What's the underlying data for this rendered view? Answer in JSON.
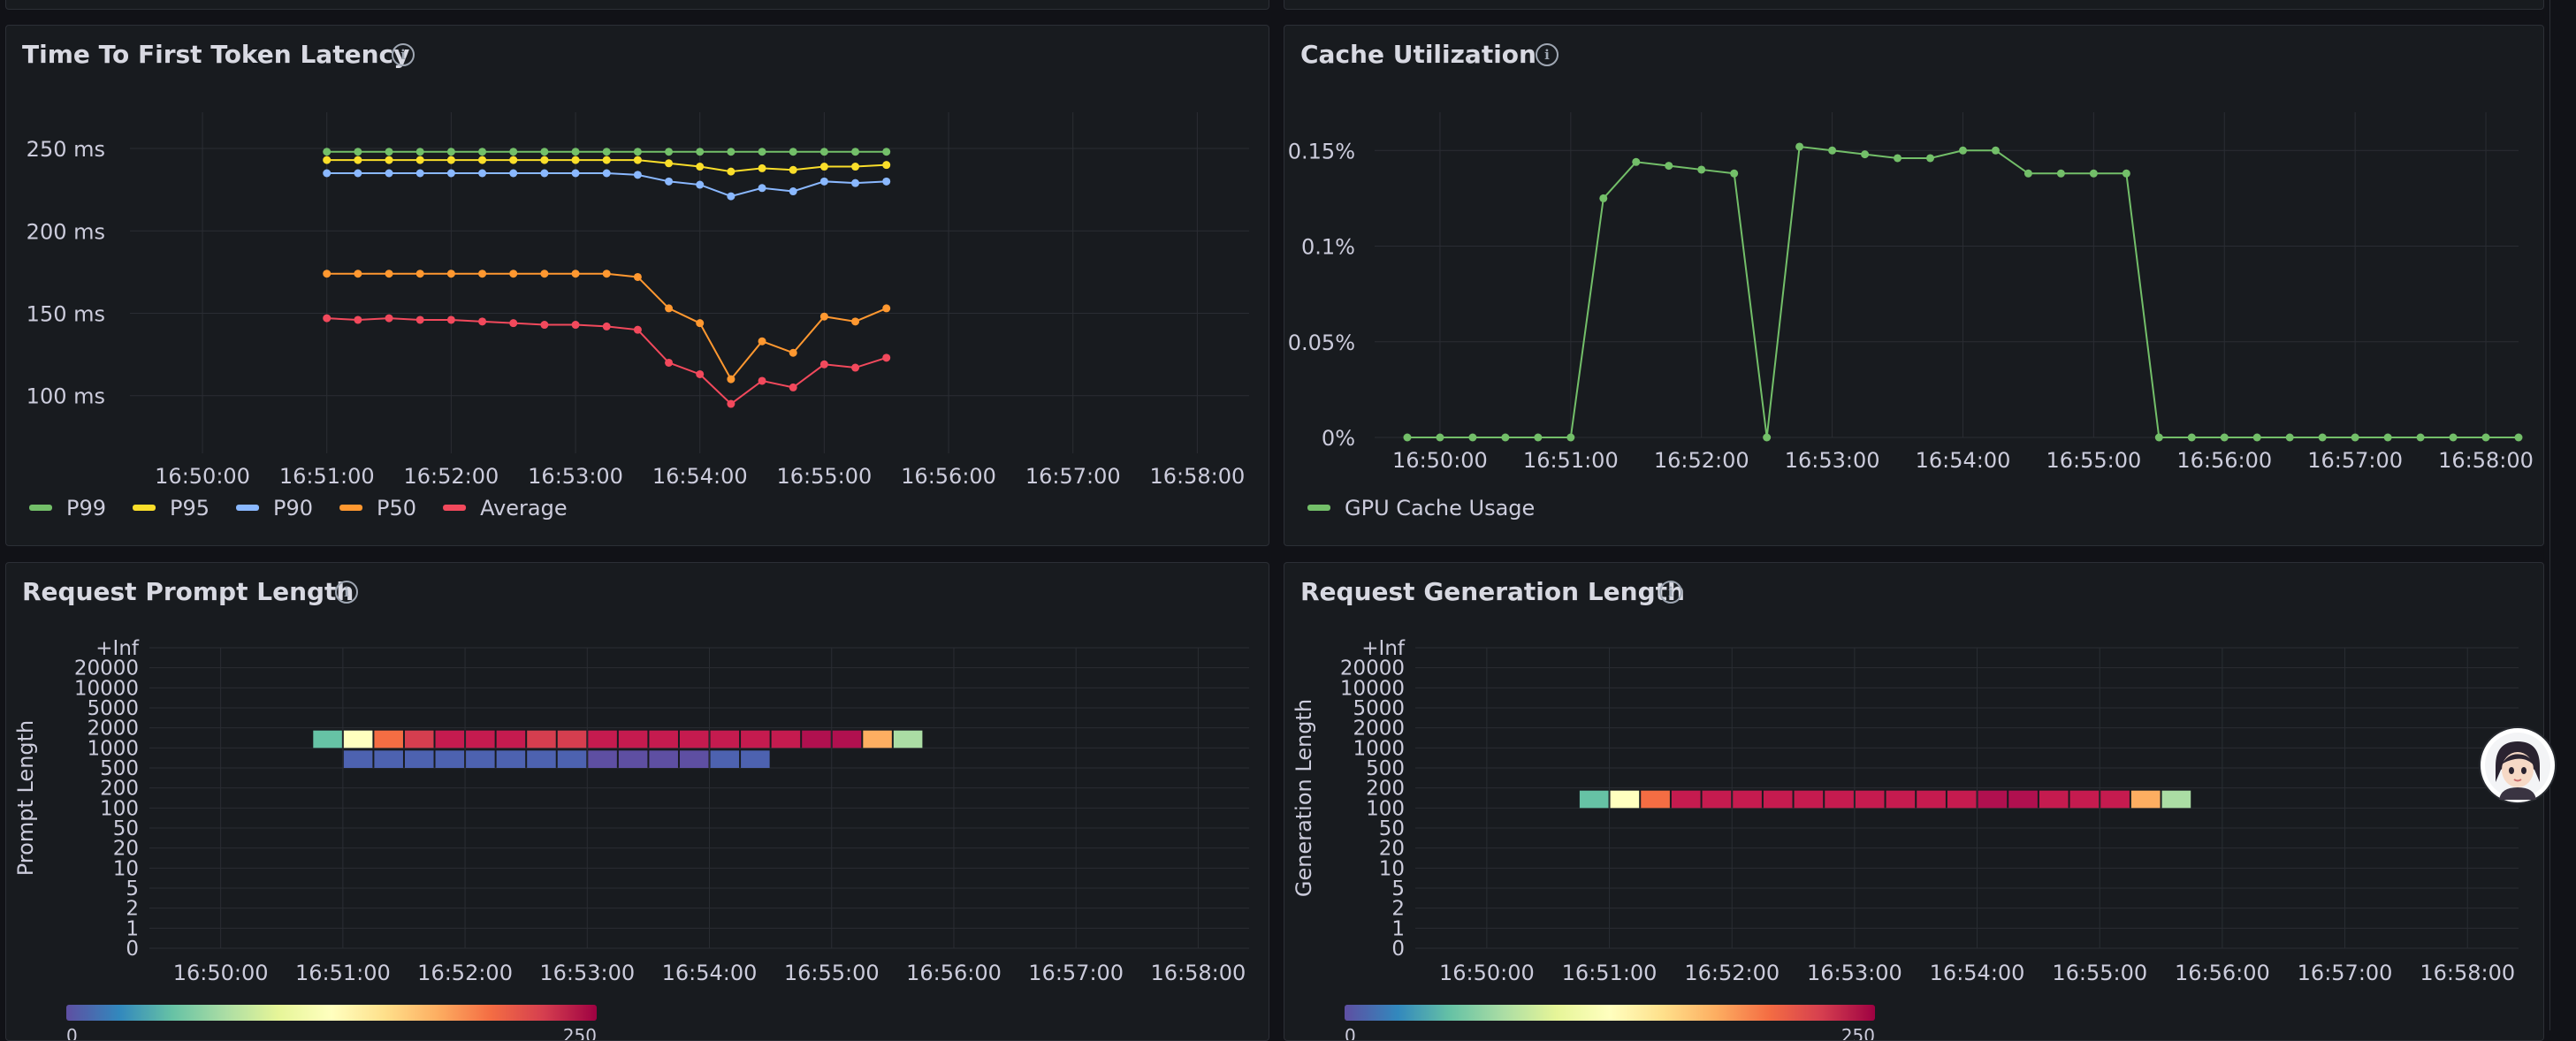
{
  "panels": {
    "ttft": {
      "title": "Time To First Token Latency"
    },
    "cache": {
      "title": "Cache Utilization"
    },
    "prompt": {
      "title": "Request Prompt Length"
    },
    "generation": {
      "title": "Request Generation Length"
    }
  },
  "time_ticks": [
    "16:50:00",
    "16:51:00",
    "16:52:00",
    "16:53:00",
    "16:54:00",
    "16:55:00",
    "16:56:00",
    "16:57:00",
    "16:58:00"
  ],
  "chart_data": [
    {
      "id": "ttft",
      "type": "line",
      "title": "Time To First Token Latency",
      "ylim": [
        65,
        272
      ],
      "y_ticks": [
        {
          "v": 250,
          "label": "250 ms"
        },
        {
          "v": 200,
          "label": "200 ms"
        },
        {
          "v": 150,
          "label": "150 ms"
        },
        {
          "v": 100,
          "label": "100 ms"
        }
      ],
      "xlim": [
        "16:49:25",
        "16:58:25"
      ],
      "x": [
        "16:51:00",
        "16:51:15",
        "16:51:30",
        "16:51:45",
        "16:52:00",
        "16:52:15",
        "16:52:30",
        "16:52:45",
        "16:53:00",
        "16:53:15",
        "16:53:30",
        "16:53:45",
        "16:54:00",
        "16:54:15",
        "16:54:30",
        "16:54:45",
        "16:55:00",
        "16:55:15",
        "16:55:30"
      ],
      "legend": "bottom-left",
      "series": [
        {
          "name": "P99",
          "color": "#73bf69",
          "values": [
            248,
            248,
            248,
            248,
            248,
            248,
            248,
            248,
            248,
            248,
            248,
            248,
            248,
            248,
            248,
            248,
            248,
            248,
            248
          ]
        },
        {
          "name": "P95",
          "color": "#fade2a",
          "values": [
            243,
            243,
            243,
            243,
            243,
            243,
            243,
            243,
            243,
            243,
            243,
            241,
            239,
            236,
            238,
            237,
            239,
            239,
            240
          ]
        },
        {
          "name": "P90",
          "color": "#8ab8ff",
          "values": [
            235,
            235,
            235,
            235,
            235,
            235,
            235,
            235,
            235,
            235,
            234,
            230,
            228,
            221,
            226,
            224,
            230,
            229,
            230
          ]
        },
        {
          "name": "P50",
          "color": "#ff9830",
          "values": [
            174,
            174,
            174,
            174,
            174,
            174,
            174,
            174,
            174,
            174,
            172,
            153,
            144,
            110,
            133,
            126,
            148,
            145,
            153
          ]
        },
        {
          "name": "Average",
          "color": "#f2495c",
          "values": [
            147,
            146,
            147,
            146,
            146,
            145,
            144,
            143,
            143,
            142,
            140,
            120,
            113,
            95,
            109,
            105,
            119,
            117,
            123
          ]
        }
      ]
    },
    {
      "id": "cache",
      "type": "line",
      "title": "Cache Utilization",
      "ylim": [
        0,
        0.0017
      ],
      "y_ticks": [
        {
          "v": 0.0015,
          "label": "0.15%"
        },
        {
          "v": 0.001,
          "label": "0.1%"
        },
        {
          "v": 0.0005,
          "label": "0.05%"
        },
        {
          "v": 0,
          "label": "0%"
        }
      ],
      "xlim": [
        "16:49:30",
        "16:58:15"
      ],
      "legend": "bottom-left",
      "series": [
        {
          "name": "GPU Cache Usage",
          "color": "#73bf69",
          "x": [
            "16:49:45",
            "16:50:00",
            "16:50:15",
            "16:50:30",
            "16:50:45",
            "16:51:00",
            "16:51:15",
            "16:51:30",
            "16:51:45",
            "16:52:00",
            "16:52:15",
            "16:52:30",
            "16:52:45",
            "16:53:00",
            "16:53:15",
            "16:53:30",
            "16:53:45",
            "16:54:00",
            "16:54:15",
            "16:54:30",
            "16:54:45",
            "16:55:00",
            "16:55:15",
            "16:55:30",
            "16:55:45",
            "16:56:00",
            "16:56:15",
            "16:56:30",
            "16:56:45",
            "16:57:00",
            "16:57:15",
            "16:57:30",
            "16:57:45",
            "16:58:00",
            "16:58:15"
          ],
          "values": [
            0,
            0,
            0,
            0,
            0,
            0,
            0.00125,
            0.00144,
            0.00142,
            0.0014,
            0.00138,
            0,
            0.00152,
            0.0015,
            0.00148,
            0.00146,
            0.00146,
            0.0015,
            0.0015,
            0.00138,
            0.00138,
            0.00138,
            0.00138,
            0,
            0,
            0,
            0,
            0,
            0,
            0,
            0,
            0,
            0,
            0,
            0
          ]
        }
      ]
    },
    {
      "id": "prompt",
      "type": "heatmap",
      "title": "Request Prompt Length",
      "ylabel": "Prompt Length",
      "y_buckets": [
        "0",
        "1",
        "2",
        "5",
        "10",
        "20",
        "50",
        "100",
        "200",
        "500",
        "1000",
        "2000",
        "5000",
        "10000",
        "20000",
        "+Inf"
      ],
      "xlim": [
        "16:49:25",
        "16:58:25"
      ],
      "scale": {
        "min": "0",
        "max": "250"
      },
      "rows": [
        {
          "bucket": "2000",
          "start": "16:50:45",
          "step_seconds": 15,
          "colors": [
            "#66c2a5",
            "#ffffbf",
            "#f46d43",
            "#d53e4f",
            "#c51b4f",
            "#c51b4f",
            "#c51b4f",
            "#d53e4f",
            "#d53e4f",
            "#c51b4f",
            "#c51b4f",
            "#c51b4f",
            "#c51b4f",
            "#c51b4f",
            "#c51b4f",
            "#c51b4f",
            "#b0104f",
            "#b0104f",
            "#fdae61",
            "#abdda4"
          ]
        },
        {
          "bucket": "1000",
          "start": "16:51:00",
          "step_seconds": 15,
          "colors": [
            "#4d62b0",
            "#4d62b0",
            "#4d62b0",
            "#4d62b0",
            "#4d62b0",
            "#4d62b0",
            "#4d62b0",
            "#4d62b0",
            "#5e4fa2",
            "#5e4fa2",
            "#5e4fa2",
            "#5e4fa2",
            "#4d62b0",
            "#4d62b0"
          ]
        }
      ]
    },
    {
      "id": "generation",
      "type": "heatmap",
      "title": "Request Generation Length",
      "ylabel": "Generation Length",
      "y_buckets": [
        "0",
        "1",
        "2",
        "5",
        "10",
        "20",
        "50",
        "100",
        "200",
        "500",
        "1000",
        "2000",
        "5000",
        "10000",
        "20000",
        "+Inf"
      ],
      "xlim": [
        "16:49:25",
        "16:58:25"
      ],
      "scale": {
        "min": "0",
        "max": "250"
      },
      "rows": [
        {
          "bucket": "200",
          "start": "16:50:45",
          "step_seconds": 15,
          "colors": [
            "#66c2a5",
            "#ffffbf",
            "#f46d43",
            "#c51b4f",
            "#c51b4f",
            "#c51b4f",
            "#c51b4f",
            "#c51b4f",
            "#c51b4f",
            "#c51b4f",
            "#c51b4f",
            "#c51b4f",
            "#c51b4f",
            "#b0104f",
            "#b0104f",
            "#c51b4f",
            "#c51b4f",
            "#c51b4f",
            "#fdae61",
            "#abdda4"
          ]
        }
      ]
    }
  ]
}
